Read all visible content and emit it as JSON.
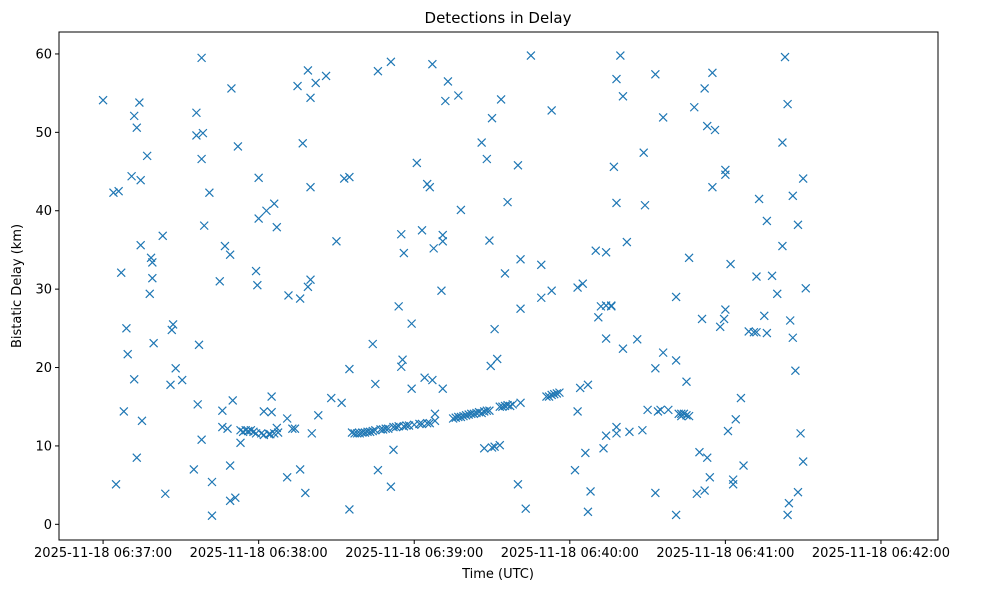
{
  "chart_data": {
    "type": "scatter",
    "title": "Detections in Delay",
    "xlabel": "Time (UTC)",
    "ylabel": "Bistatic Delay (km)",
    "x_unit": "seconds after 2025-11-18 06:37:00",
    "xlim": [
      -17,
      322
    ],
    "ylim": [
      -2,
      62.8
    ],
    "xticks": [
      {
        "value": 0,
        "label": "2025-11-18 06:37:00"
      },
      {
        "value": 60,
        "label": "2025-11-18 06:38:00"
      },
      {
        "value": 120,
        "label": "2025-11-18 06:39:00"
      },
      {
        "value": 180,
        "label": "2025-11-18 06:40:00"
      },
      {
        "value": 240,
        "label": "2025-11-18 06:41:00"
      },
      {
        "value": 300,
        "label": "2025-11-18 06:42:00"
      }
    ],
    "yticks": [
      {
        "value": 0,
        "label": "0"
      },
      {
        "value": 10,
        "label": "10"
      },
      {
        "value": 20,
        "label": "20"
      },
      {
        "value": 30,
        "label": "30"
      },
      {
        "value": 40,
        "label": "40"
      },
      {
        "value": 50,
        "label": "50"
      },
      {
        "value": 60,
        "label": "60"
      }
    ],
    "grid": false,
    "series": [
      {
        "name": "Detections",
        "marker": "x",
        "color": "#1f77b4",
        "points": [
          [
            0,
            54.1
          ],
          [
            4,
            42.3
          ],
          [
            5,
            5.1
          ],
          [
            6,
            42.5
          ],
          [
            7,
            32.1
          ],
          [
            8,
            14.4
          ],
          [
            9,
            25
          ],
          [
            9.5,
            21.7
          ],
          [
            11,
            44.4
          ],
          [
            12,
            18.5
          ],
          [
            12,
            52.1
          ],
          [
            13,
            50.6
          ],
          [
            13,
            8.5
          ],
          [
            14,
            53.8
          ],
          [
            14.5,
            43.9
          ],
          [
            14.5,
            35.6
          ],
          [
            15,
            13.2
          ],
          [
            17,
            47
          ],
          [
            18,
            29.4
          ],
          [
            18.5,
            34
          ],
          [
            19,
            33.4
          ],
          [
            19,
            31.4
          ],
          [
            19.5,
            23.1
          ],
          [
            23,
            36.8
          ],
          [
            24,
            3.9
          ],
          [
            26,
            17.8
          ],
          [
            26.5,
            24.8
          ],
          [
            27,
            25.5
          ],
          [
            28,
            19.9
          ],
          [
            30.5,
            18.4
          ],
          [
            35,
            7
          ],
          [
            36,
            52.5
          ],
          [
            36,
            49.6
          ],
          [
            36.5,
            15.3
          ],
          [
            37,
            22.9
          ],
          [
            38,
            59.5
          ],
          [
            38,
            46.6
          ],
          [
            38,
            10.8
          ],
          [
            38.5,
            49.9
          ],
          [
            39,
            38.1
          ],
          [
            41,
            42.3
          ],
          [
            42,
            5.4
          ],
          [
            42,
            1.1
          ],
          [
            45,
            31
          ],
          [
            46,
            14.5
          ],
          [
            46,
            12.4
          ],
          [
            47,
            35.5
          ],
          [
            48,
            12.2
          ],
          [
            49,
            34.4
          ],
          [
            49,
            3
          ],
          [
            49,
            7.5
          ],
          [
            49.5,
            55.6
          ],
          [
            50,
            15.8
          ],
          [
            51,
            3.4
          ],
          [
            52,
            48.2
          ],
          [
            53,
            10.4
          ],
          [
            53,
            12
          ],
          [
            54,
            11.8
          ],
          [
            55,
            12
          ],
          [
            56,
            11.9
          ],
          [
            57,
            12
          ],
          [
            58,
            11.8
          ],
          [
            59,
            11.6
          ],
          [
            59,
            32.3
          ],
          [
            59.5,
            30.5
          ],
          [
            60,
            44.2
          ],
          [
            60,
            39
          ],
          [
            61,
            11.6
          ],
          [
            62,
            14.4
          ],
          [
            62,
            11.4
          ],
          [
            63,
            40
          ],
          [
            64,
            11.5
          ],
          [
            64.5,
            11.5
          ],
          [
            65,
            16.3
          ],
          [
            65,
            14.3
          ],
          [
            66,
            11.6
          ],
          [
            66,
            40.9
          ],
          [
            67,
            37.9
          ],
          [
            67,
            12.3
          ],
          [
            67.5,
            11.7
          ],
          [
            71,
            13.5
          ],
          [
            71,
            6
          ],
          [
            71.5,
            29.2
          ],
          [
            73,
            12.2
          ],
          [
            74,
            12.2
          ],
          [
            75,
            55.9
          ],
          [
            76,
            28.8
          ],
          [
            76,
            7
          ],
          [
            77,
            48.6
          ],
          [
            78,
            4
          ],
          [
            79,
            57.9
          ],
          [
            79,
            30.3
          ],
          [
            80,
            54.4
          ],
          [
            80,
            43
          ],
          [
            80,
            31.2
          ],
          [
            80.5,
            11.6
          ],
          [
            82,
            56.3
          ],
          [
            83,
            13.9
          ],
          [
            86,
            57.2
          ],
          [
            88,
            16.1
          ],
          [
            90,
            36.1
          ],
          [
            92,
            15.5
          ],
          [
            93,
            44.1
          ],
          [
            95,
            44.3
          ],
          [
            95,
            19.8
          ],
          [
            95,
            1.9
          ],
          [
            96,
            11.7
          ],
          [
            97,
            11.6
          ],
          [
            98,
            11.6
          ],
          [
            99,
            11.6
          ],
          [
            100,
            11.7
          ],
          [
            101,
            11.7
          ],
          [
            102,
            11.8
          ],
          [
            103,
            11.8
          ],
          [
            104,
            11.9
          ],
          [
            104,
            23
          ],
          [
            105,
            17.9
          ],
          [
            105,
            12
          ],
          [
            106,
            6.9
          ],
          [
            106,
            57.8
          ],
          [
            107,
            12.1
          ],
          [
            108,
            12.1
          ],
          [
            109,
            12.2
          ],
          [
            110,
            12.2
          ],
          [
            111,
            4.8
          ],
          [
            111,
            59
          ],
          [
            112,
            12.4
          ],
          [
            112,
            9.5
          ],
          [
            113,
            12.4
          ],
          [
            114,
            27.8
          ],
          [
            114,
            12.5
          ],
          [
            115,
            20.1
          ],
          [
            115,
            37
          ],
          [
            115.5,
            21
          ],
          [
            116,
            34.6
          ],
          [
            116,
            12.5
          ],
          [
            117,
            12.6
          ],
          [
            118,
            12.6
          ],
          [
            119,
            25.6
          ],
          [
            119,
            17.3
          ],
          [
            120,
            12.7
          ],
          [
            121,
            46.1
          ],
          [
            122,
            12.8
          ],
          [
            123,
            37.5
          ],
          [
            123,
            12.8
          ],
          [
            124,
            18.7
          ],
          [
            125,
            43.4
          ],
          [
            125,
            12.9
          ],
          [
            126,
            12.9
          ],
          [
            126,
            43
          ],
          [
            127,
            18.4
          ],
          [
            127,
            58.7
          ],
          [
            127.5,
            35.2
          ],
          [
            128,
            13.2
          ],
          [
            128,
            14.1
          ],
          [
            130.5,
            29.8
          ],
          [
            131,
            36.9
          ],
          [
            131,
            36.1
          ],
          [
            131,
            17.3
          ],
          [
            132,
            54
          ],
          [
            133,
            56.5
          ],
          [
            135,
            13.5
          ],
          [
            136,
            13.6
          ],
          [
            137,
            54.7
          ],
          [
            137,
            13.7
          ],
          [
            138,
            13.7
          ],
          [
            138,
            40.1
          ],
          [
            139,
            13.8
          ],
          [
            140,
            13.9
          ],
          [
            141,
            14
          ],
          [
            142,
            14.1
          ],
          [
            143,
            14.1
          ],
          [
            144,
            14.2
          ],
          [
            145,
            14.3
          ],
          [
            146,
            48.7
          ],
          [
            146,
            14.2
          ],
          [
            147,
            9.7
          ],
          [
            147,
            14.4
          ],
          [
            148,
            14.5
          ],
          [
            148,
            46.6
          ],
          [
            149,
            36.2
          ],
          [
            149,
            14.5
          ],
          [
            149.5,
            20.2
          ],
          [
            150,
            51.8
          ],
          [
            150,
            9.8
          ],
          [
            151,
            9.9
          ],
          [
            151,
            24.9
          ],
          [
            152,
            21.1
          ],
          [
            153,
            15
          ],
          [
            153,
            10.1
          ],
          [
            153.5,
            54.2
          ],
          [
            154,
            15
          ],
          [
            155,
            15.1
          ],
          [
            155,
            32
          ],
          [
            156,
            15.2
          ],
          [
            156,
            41.1
          ],
          [
            157,
            15.1
          ],
          [
            158,
            15.3
          ],
          [
            160,
            45.8
          ],
          [
            160,
            5.1
          ],
          [
            161,
            15.5
          ],
          [
            161,
            33.8
          ],
          [
            161,
            27.5
          ],
          [
            163,
            2
          ],
          [
            165,
            59.8
          ],
          [
            169,
            28.9
          ],
          [
            169,
            33.1
          ],
          [
            171,
            16.3
          ],
          [
            172,
            16.3
          ],
          [
            173,
            52.8
          ],
          [
            173,
            16.5
          ],
          [
            173,
            29.8
          ],
          [
            174,
            16.6
          ],
          [
            175,
            16.7
          ],
          [
            176,
            16.8
          ],
          [
            182,
            6.9
          ],
          [
            183,
            30.2
          ],
          [
            183,
            14.4
          ],
          [
            184,
            17.4
          ],
          [
            185,
            30.7
          ],
          [
            186,
            9.1
          ],
          [
            187,
            17.8
          ],
          [
            187,
            1.6
          ],
          [
            188,
            4.2
          ],
          [
            190,
            34.9
          ],
          [
            191,
            26.4
          ],
          [
            192,
            27.8
          ],
          [
            193,
            9.7
          ],
          [
            194,
            11.3
          ],
          [
            194,
            23.7
          ],
          [
            194,
            27.9
          ],
          [
            194,
            34.7
          ],
          [
            196,
            27.8
          ],
          [
            196,
            27.9
          ],
          [
            197,
            45.6
          ],
          [
            198,
            41
          ],
          [
            198,
            11.6
          ],
          [
            198,
            12.4
          ],
          [
            198,
            56.8
          ],
          [
            199.5,
            59.8
          ],
          [
            200.5,
            54.6
          ],
          [
            200.5,
            22.4
          ],
          [
            202,
            36
          ],
          [
            203,
            11.8
          ],
          [
            206,
            23.6
          ],
          [
            208,
            12
          ],
          [
            208.5,
            47.4
          ],
          [
            209,
            40.7
          ],
          [
            210,
            14.6
          ],
          [
            213,
            4
          ],
          [
            213,
            19.9
          ],
          [
            213,
            57.4
          ],
          [
            214,
            14.4
          ],
          [
            215,
            14.6
          ],
          [
            216,
            51.9
          ],
          [
            216,
            21.9
          ],
          [
            218,
            14.6
          ],
          [
            221,
            1.2
          ],
          [
            221,
            29
          ],
          [
            221,
            20.9
          ],
          [
            222,
            14.1
          ],
          [
            223,
            14.1
          ],
          [
            223,
            13.8
          ],
          [
            224,
            14.1
          ],
          [
            225,
            13.9
          ],
          [
            225,
            18.2
          ],
          [
            226,
            13.8
          ],
          [
            226,
            34
          ],
          [
            228,
            53.2
          ],
          [
            229,
            3.9
          ],
          [
            230,
            9.2
          ],
          [
            231,
            26.2
          ],
          [
            232,
            55.6
          ],
          [
            232,
            4.3
          ],
          [
            233,
            8.5
          ],
          [
            233,
            50.8
          ],
          [
            234,
            6
          ],
          [
            235,
            57.6
          ],
          [
            235,
            43
          ],
          [
            236,
            50.3
          ],
          [
            238,
            25.2
          ],
          [
            239.5,
            26.2
          ],
          [
            240,
            27.4
          ],
          [
            240,
            44.6
          ],
          [
            240,
            45.2
          ],
          [
            241,
            11.9
          ],
          [
            242,
            33.2
          ],
          [
            243,
            5.1
          ],
          [
            243,
            5.7
          ],
          [
            244,
            13.4
          ],
          [
            246,
            16.1
          ],
          [
            247,
            7.5
          ],
          [
            249,
            24.6
          ],
          [
            251,
            24.5
          ],
          [
            252,
            24.5
          ],
          [
            252,
            31.6
          ],
          [
            253,
            41.5
          ],
          [
            255,
            26.6
          ],
          [
            256,
            38.7
          ],
          [
            256,
            24.4
          ],
          [
            258,
            31.7
          ],
          [
            260,
            29.4
          ],
          [
            262,
            48.7
          ],
          [
            262,
            35.5
          ],
          [
            263,
            59.6
          ],
          [
            264,
            53.6
          ],
          [
            264,
            1.2
          ],
          [
            264.5,
            2.7
          ],
          [
            265,
            26
          ],
          [
            266,
            41.9
          ],
          [
            266,
            23.8
          ],
          [
            267,
            19.6
          ],
          [
            268,
            38.2
          ],
          [
            268,
            4.1
          ],
          [
            269,
            11.6
          ],
          [
            270,
            8
          ],
          [
            270,
            44.1
          ],
          [
            271,
            30.1
          ]
        ]
      }
    ]
  }
}
